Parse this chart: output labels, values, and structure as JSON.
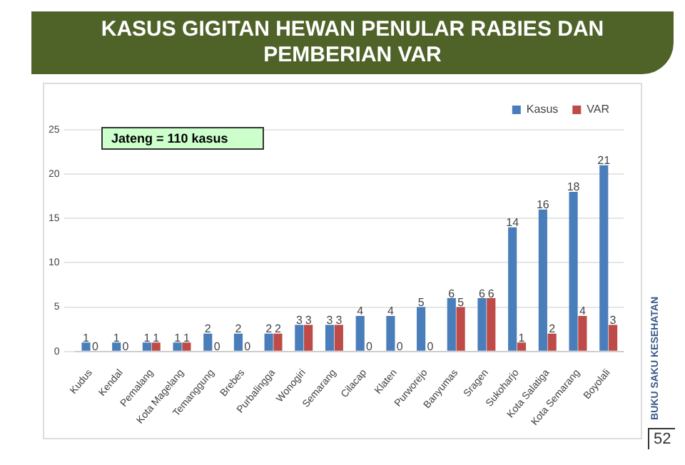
{
  "chart_data": {
    "type": "bar",
    "title": "KASUS GIGITAN HEWAN PENULAR RABIES DAN PEMBERIAN VAR",
    "categories": [
      "Kudus",
      "Kendal",
      "Pemalang",
      "Kota Magelang",
      "Temanggung",
      "Brebes",
      "Purbalingga",
      "Wonogiri",
      "Semarang",
      "Cilacap",
      "Klaten",
      "Purworejo",
      "Banyumas",
      "Sragen",
      "Sukoharjo",
      "Kota Salatiga",
      "Kota Semarang",
      "Boyolali"
    ],
    "series": [
      {
        "name": "Kasus",
        "color": "#4a7ebb",
        "values": [
          1,
          1,
          1,
          1,
          2,
          2,
          2,
          3,
          3,
          4,
          4,
          5,
          6,
          6,
          14,
          16,
          18,
          21
        ]
      },
      {
        "name": "VAR",
        "color": "#be4b48",
        "values": [
          0,
          0,
          1,
          1,
          0,
          0,
          2,
          3,
          3,
          0,
          0,
          0,
          5,
          6,
          1,
          2,
          4,
          3
        ]
      }
    ],
    "ylim": [
      0,
      25
    ],
    "yticks": [
      0,
      5,
      10,
      15,
      20,
      25
    ],
    "grid": "y",
    "legend": "top right",
    "data_labels": true,
    "annotations": [
      "Jateng = 110 kasus",
      "BUKU SAKU KESEHATAN",
      "52"
    ]
  }
}
